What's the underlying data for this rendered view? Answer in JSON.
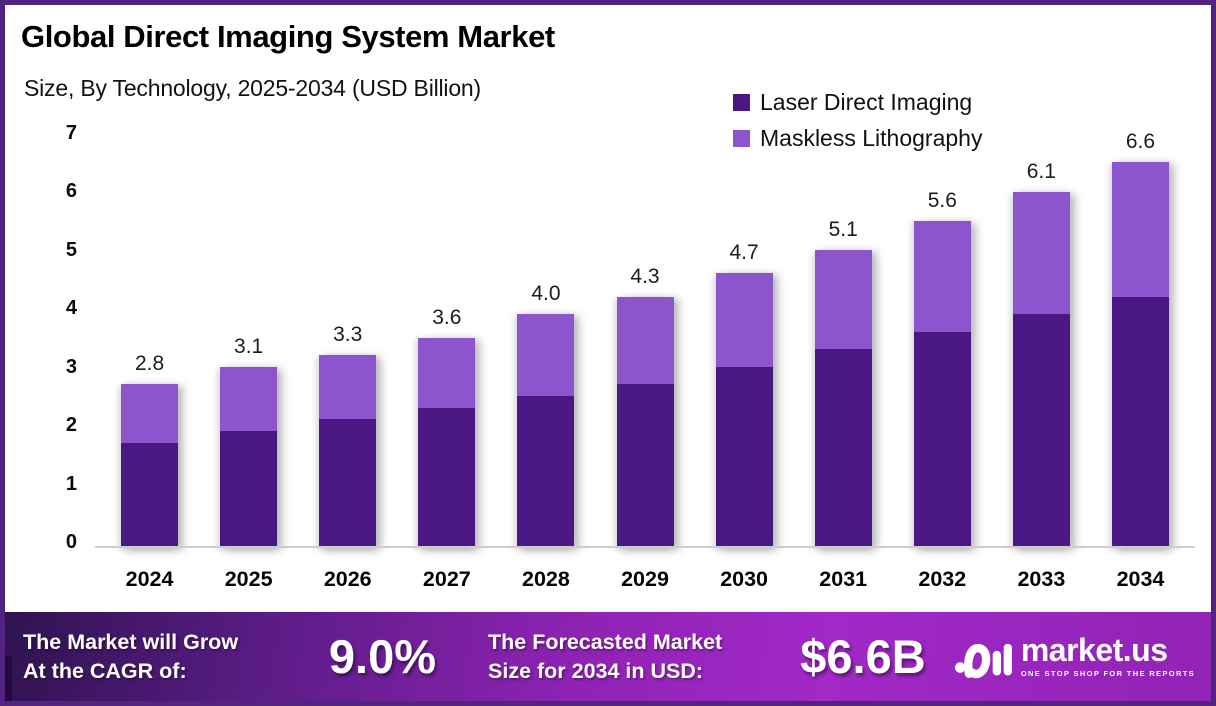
{
  "header": {
    "title": "Global Direct Imaging System Market",
    "subtitle": "Size, By Technology, 2025-2034 (USD Billion)"
  },
  "chart_data": {
    "type": "bar",
    "stacked": true,
    "title": "Global Direct Imaging System Market Size, By Technology, 2025-2034 (USD Billion)",
    "categories": [
      "2024",
      "2025",
      "2026",
      "2027",
      "2028",
      "2029",
      "2030",
      "2031",
      "2032",
      "2033",
      "2034"
    ],
    "series": [
      {
        "name": "Laser Direct Imaging",
        "color": "#4a1783",
        "values": [
          1.8,
          2.0,
          2.2,
          2.4,
          2.6,
          2.8,
          3.1,
          3.4,
          3.7,
          4.0,
          4.3
        ]
      },
      {
        "name": "Maskless Lithography",
        "color": "#8c54cd",
        "values": [
          1.0,
          1.1,
          1.1,
          1.2,
          1.4,
          1.5,
          1.6,
          1.7,
          1.9,
          2.1,
          2.3
        ]
      }
    ],
    "totals": [
      2.8,
      3.1,
      3.3,
      3.6,
      4.0,
      4.3,
      4.7,
      5.1,
      5.6,
      6.1,
      6.6
    ],
    "total_labels": [
      "2.8",
      "3.1",
      "3.3",
      "3.6",
      "4.0",
      "4.3",
      "4.7",
      "5.1",
      "5.6",
      "6.1",
      "6.6"
    ],
    "y_ticks": [
      0,
      1,
      2,
      3,
      4,
      5,
      6,
      7
    ],
    "ylim": [
      0,
      7
    ],
    "xlabel": "",
    "ylabel": "",
    "grid": false,
    "legend_position": "top-right",
    "legend_square_colors": {
      "laser_direct_imaging": "#4a1d80",
      "maskless_lithography": "#8a5bce"
    }
  },
  "banner": {
    "growth_line1": "The Market will Grow",
    "growth_line2": "At the CAGR of:",
    "cagr_value": "9.0%",
    "forecast_line1": "The Forecasted Market",
    "forecast_line2": "Size for 2034 in USD:",
    "forecast_value": "$6.6B"
  },
  "logo": {
    "brand": "market.us",
    "tagline": "ONE STOP SHOP FOR THE REPORTS"
  },
  "colors": {
    "border": "#522480",
    "background": "#ffffff",
    "bar_dark": "#4a1783",
    "bar_light": "#8c54cd",
    "banner_gradient_start": "#2f1350",
    "banner_gradient_end": "#a228c8",
    "baseline": "#cdcdcd",
    "text": "#000000",
    "banner_text": "#ffffff"
  }
}
